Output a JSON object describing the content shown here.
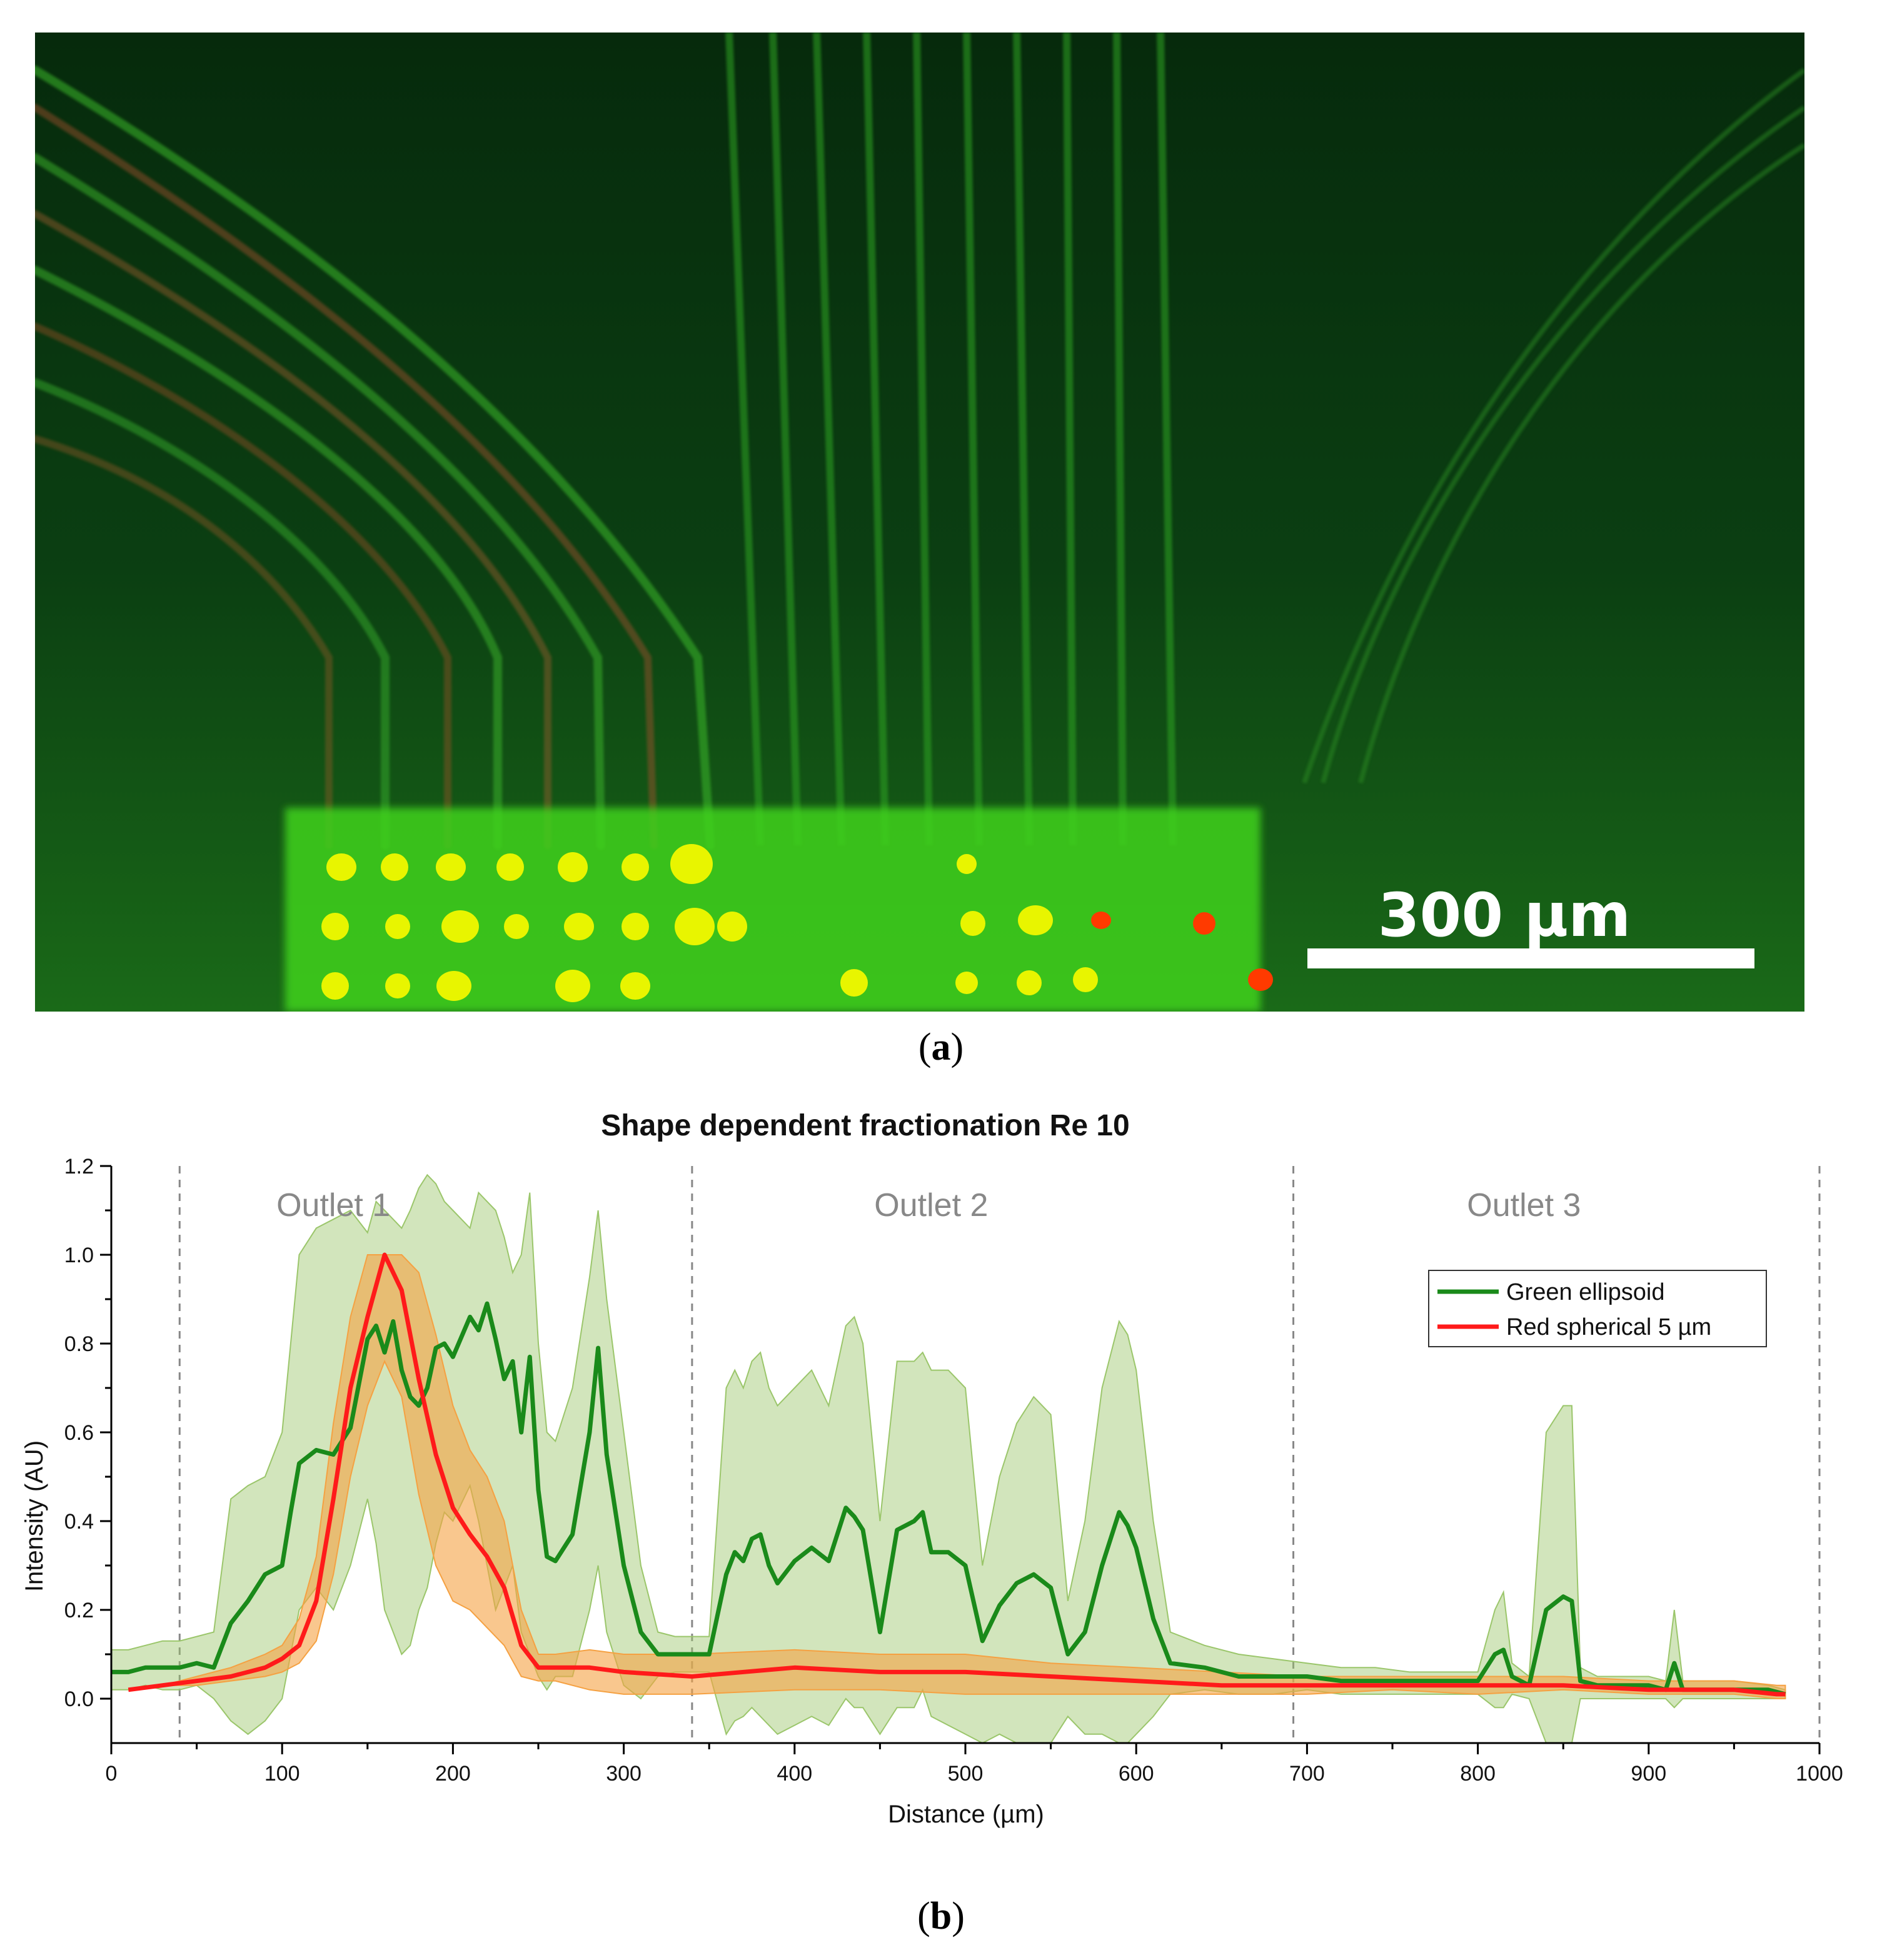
{
  "micrograph": {
    "scale_bar_label": "300 µm"
  },
  "panel_labels": {
    "a": "a",
    "b": "b"
  },
  "colors": {
    "green_series": "#1a8a1a",
    "green_band": "#9bc66b",
    "red_series": "#ff1a1a",
    "red_band": "#f5a142"
  },
  "chart_data": {
    "type": "line",
    "title": "Shape dependent fractionation Re 10",
    "xlabel": "Distance (µm)",
    "ylabel": "Intensity (AU)",
    "xlim": [
      0,
      1000
    ],
    "ylim": [
      -0.1,
      1.2
    ],
    "xticks": [
      0,
      100,
      200,
      300,
      400,
      500,
      600,
      700,
      800,
      900,
      1000
    ],
    "yticks": [
      0.0,
      0.2,
      0.4,
      0.6,
      0.8,
      1.0,
      1.2
    ],
    "grid": false,
    "legend_position": "top-right",
    "vlines": [
      40,
      340,
      692,
      1000
    ],
    "annotations": [
      {
        "text": "Outlet 1",
        "x": 130,
        "y": 1.11
      },
      {
        "text": "Outlet 2",
        "x": 480,
        "y": 1.11
      },
      {
        "text": "Outlet 3",
        "x": 827,
        "y": 1.11
      }
    ],
    "series": [
      {
        "name": "Green ellipsoid",
        "color": "#1a8a1a",
        "band_color": "#9bc66b",
        "x": [
          0,
          10,
          20,
          30,
          40,
          50,
          60,
          70,
          80,
          90,
          100,
          105,
          110,
          120,
          130,
          140,
          150,
          155,
          160,
          165,
          170,
          175,
          180,
          185,
          190,
          195,
          200,
          210,
          215,
          220,
          225,
          230,
          235,
          240,
          245,
          250,
          255,
          260,
          270,
          280,
          285,
          290,
          300,
          310,
          320,
          330,
          340,
          350,
          360,
          365,
          370,
          375,
          380,
          385,
          390,
          400,
          410,
          420,
          430,
          435,
          440,
          450,
          460,
          470,
          475,
          480,
          490,
          500,
          510,
          520,
          530,
          540,
          550,
          560,
          570,
          580,
          590,
          595,
          600,
          610,
          620,
          640,
          660,
          680,
          700,
          720,
          740,
          760,
          780,
          800,
          810,
          815,
          820,
          830,
          840,
          850,
          855,
          860,
          870,
          880,
          900,
          910,
          915,
          920,
          930,
          950,
          970,
          980
        ],
        "y": [
          0.06,
          0.06,
          0.07,
          0.07,
          0.07,
          0.08,
          0.07,
          0.17,
          0.22,
          0.28,
          0.3,
          0.42,
          0.53,
          0.56,
          0.55,
          0.61,
          0.81,
          0.84,
          0.78,
          0.85,
          0.74,
          0.68,
          0.66,
          0.7,
          0.79,
          0.8,
          0.77,
          0.86,
          0.83,
          0.89,
          0.81,
          0.72,
          0.76,
          0.6,
          0.77,
          0.47,
          0.32,
          0.31,
          0.37,
          0.6,
          0.79,
          0.55,
          0.3,
          0.15,
          0.1,
          0.1,
          0.1,
          0.1,
          0.28,
          0.33,
          0.31,
          0.36,
          0.37,
          0.3,
          0.26,
          0.31,
          0.34,
          0.31,
          0.43,
          0.41,
          0.38,
          0.15,
          0.38,
          0.4,
          0.42,
          0.33,
          0.33,
          0.3,
          0.13,
          0.21,
          0.26,
          0.28,
          0.25,
          0.1,
          0.15,
          0.3,
          0.42,
          0.39,
          0.34,
          0.18,
          0.08,
          0.07,
          0.05,
          0.05,
          0.05,
          0.04,
          0.04,
          0.04,
          0.04,
          0.04,
          0.1,
          0.11,
          0.05,
          0.03,
          0.2,
          0.23,
          0.22,
          0.04,
          0.03,
          0.03,
          0.03,
          0.02,
          0.08,
          0.02,
          0.02,
          0.02,
          0.02,
          0.01
        ],
        "upper": [
          0.11,
          0.11,
          0.12,
          0.13,
          0.13,
          0.14,
          0.15,
          0.45,
          0.48,
          0.5,
          0.6,
          0.8,
          1.0,
          1.06,
          1.08,
          1.1,
          1.05,
          1.12,
          1.1,
          1.08,
          1.06,
          1.1,
          1.15,
          1.18,
          1.16,
          1.12,
          1.1,
          1.06,
          1.14,
          1.12,
          1.1,
          1.04,
          0.96,
          1.0,
          1.14,
          0.8,
          0.6,
          0.58,
          0.7,
          0.95,
          1.1,
          0.9,
          0.6,
          0.3,
          0.15,
          0.14,
          0.14,
          0.14,
          0.7,
          0.74,
          0.7,
          0.76,
          0.78,
          0.7,
          0.66,
          0.7,
          0.74,
          0.66,
          0.84,
          0.86,
          0.8,
          0.4,
          0.76,
          0.76,
          0.78,
          0.74,
          0.74,
          0.7,
          0.3,
          0.5,
          0.62,
          0.68,
          0.64,
          0.22,
          0.4,
          0.7,
          0.85,
          0.82,
          0.74,
          0.4,
          0.15,
          0.12,
          0.1,
          0.09,
          0.08,
          0.07,
          0.07,
          0.06,
          0.06,
          0.06,
          0.2,
          0.24,
          0.08,
          0.05,
          0.6,
          0.66,
          0.66,
          0.07,
          0.05,
          0.05,
          0.05,
          0.04,
          0.2,
          0.04,
          0.04,
          0.04,
          0.03,
          0.02
        ],
        "lower": [
          0.02,
          0.02,
          0.03,
          0.02,
          0.02,
          0.03,
          0.0,
          -0.05,
          -0.08,
          -0.05,
          0.0,
          0.1,
          0.2,
          0.25,
          0.2,
          0.3,
          0.45,
          0.35,
          0.2,
          0.15,
          0.1,
          0.12,
          0.2,
          0.25,
          0.35,
          0.42,
          0.4,
          0.48,
          0.4,
          0.3,
          0.2,
          0.25,
          0.3,
          0.15,
          0.1,
          0.05,
          0.02,
          0.05,
          0.05,
          0.2,
          0.3,
          0.15,
          0.03,
          0.0,
          0.05,
          0.06,
          0.06,
          0.06,
          -0.08,
          -0.05,
          -0.04,
          -0.02,
          -0.04,
          -0.06,
          -0.08,
          -0.06,
          -0.04,
          -0.06,
          0.0,
          -0.02,
          -0.02,
          -0.08,
          -0.02,
          -0.02,
          0.02,
          -0.04,
          -0.06,
          -0.08,
          -0.1,
          -0.08,
          -0.1,
          -0.1,
          -0.1,
          -0.04,
          -0.08,
          -0.08,
          -0.1,
          -0.1,
          -0.08,
          -0.04,
          0.01,
          0.02,
          0.01,
          0.01,
          0.02,
          0.01,
          0.01,
          0.01,
          0.01,
          0.01,
          -0.02,
          -0.02,
          0.01,
          0.0,
          -0.1,
          -0.1,
          -0.1,
          0.0,
          0.0,
          0.0,
          0.0,
          0.0,
          -0.02,
          0.0,
          0.0,
          0.0,
          0.0,
          0.0
        ]
      },
      {
        "name": "Red spherical 5 µm",
        "color": "#ff1a1a",
        "band_color": "#f5a142",
        "x": [
          10,
          30,
          50,
          70,
          90,
          100,
          110,
          120,
          130,
          140,
          150,
          160,
          170,
          180,
          190,
          200,
          210,
          220,
          230,
          240,
          250,
          260,
          280,
          300,
          340,
          400,
          450,
          500,
          550,
          600,
          650,
          700,
          750,
          800,
          850,
          900,
          950,
          975,
          980
        ],
        "y": [
          0.02,
          0.03,
          0.04,
          0.05,
          0.07,
          0.09,
          0.12,
          0.22,
          0.45,
          0.7,
          0.86,
          1.0,
          0.92,
          0.72,
          0.55,
          0.43,
          0.37,
          0.32,
          0.25,
          0.12,
          0.07,
          0.07,
          0.07,
          0.06,
          0.05,
          0.07,
          0.06,
          0.06,
          0.05,
          0.04,
          0.03,
          0.03,
          0.03,
          0.03,
          0.03,
          0.02,
          0.02,
          0.01,
          0.01
        ],
        "upper": [
          0.02,
          0.03,
          0.05,
          0.07,
          0.1,
          0.12,
          0.18,
          0.32,
          0.62,
          0.86,
          1.0,
          1.0,
          1.0,
          0.96,
          0.82,
          0.66,
          0.56,
          0.5,
          0.4,
          0.2,
          0.1,
          0.1,
          0.11,
          0.1,
          0.1,
          0.11,
          0.1,
          0.1,
          0.08,
          0.07,
          0.06,
          0.05,
          0.05,
          0.05,
          0.05,
          0.04,
          0.04,
          0.03,
          0.03
        ],
        "lower": [
          0.02,
          0.03,
          0.03,
          0.04,
          0.05,
          0.06,
          0.08,
          0.13,
          0.28,
          0.5,
          0.66,
          0.76,
          0.68,
          0.46,
          0.3,
          0.22,
          0.2,
          0.16,
          0.12,
          0.05,
          0.04,
          0.04,
          0.02,
          0.01,
          0.01,
          0.02,
          0.02,
          0.01,
          0.01,
          0.01,
          0.01,
          0.01,
          0.02,
          0.01,
          0.02,
          0.01,
          0.01,
          0.0,
          0.0
        ]
      }
    ]
  }
}
